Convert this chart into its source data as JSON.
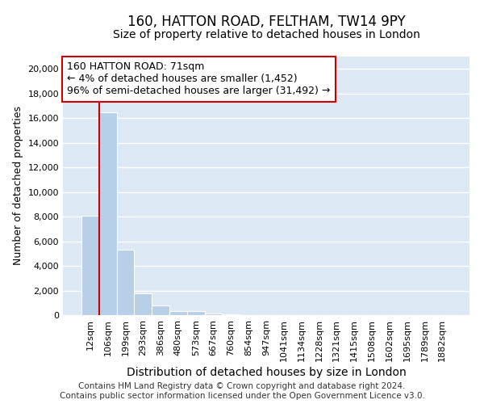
{
  "title": "160, HATTON ROAD, FELTHAM, TW14 9PY",
  "subtitle": "Size of property relative to detached houses in London",
  "xlabel": "Distribution of detached houses by size in London",
  "ylabel": "Number of detached properties",
  "categories": [
    "12sqm",
    "106sqm",
    "199sqm",
    "293sqm",
    "386sqm",
    "480sqm",
    "573sqm",
    "667sqm",
    "760sqm",
    "854sqm",
    "947sqm",
    "1041sqm",
    "1134sqm",
    "1228sqm",
    "1321sqm",
    "1415sqm",
    "1508sqm",
    "1602sqm",
    "1695sqm",
    "1789sqm",
    "1882sqm"
  ],
  "values": [
    8100,
    16500,
    5300,
    1800,
    800,
    300,
    300,
    100,
    80,
    0,
    0,
    0,
    0,
    0,
    0,
    0,
    0,
    0,
    0,
    0,
    0
  ],
  "bar_color": "#b8cfe8",
  "annotation_line1": "160 HATTON ROAD: 71sqm",
  "annotation_line2": "← 4% of detached houses are smaller (1,452)",
  "annotation_line3": "96% of semi-detached houses are larger (31,492) →",
  "annotation_box_color": "#ffffff",
  "annotation_box_edge": "#cc0000",
  "vline_color": "#cc0000",
  "vline_x": 0,
  "footer_text": "Contains HM Land Registry data © Crown copyright and database right 2024.\nContains public sector information licensed under the Open Government Licence v3.0.",
  "ylim": [
    0,
    21000
  ],
  "yticks": [
    0,
    2000,
    4000,
    6000,
    8000,
    10000,
    12000,
    14000,
    16000,
    18000,
    20000
  ],
  "bg_color": "#dde8f5",
  "grid_color": "#ffffff",
  "title_fontsize": 12,
  "subtitle_fontsize": 10,
  "ylabel_fontsize": 9,
  "xlabel_fontsize": 10,
  "tick_fontsize": 8,
  "footer_fontsize": 7.5,
  "ann_fontsize": 9
}
